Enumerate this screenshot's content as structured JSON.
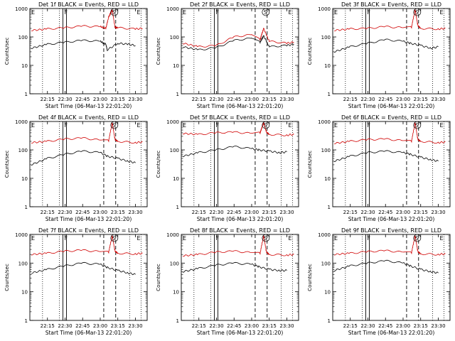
{
  "figure": {
    "start_time_label": "Start Time (06-Mar-13 22:01:20)"
  },
  "chart_data": [
    {
      "type": "line",
      "title": "Det 1f BLACK = Events, RED = LLD",
      "ylabel": "Counts/sec",
      "xlabel": "Start Time (06-Mar-13 22:01:20)",
      "yscale": "log",
      "ylim": [
        1,
        1000
      ],
      "y_ticks": [
        "1",
        "10",
        "100",
        "1000"
      ],
      "x_ticks": [
        "22:15",
        "22:30",
        "22:45",
        "23:00",
        "23:15",
        "23:30"
      ],
      "markers": [
        "E",
        "F",
        "S",
        "E"
      ],
      "series": [
        {
          "color": "#d00000",
          "x": [
            22.02,
            22.25,
            22.5,
            22.75,
            23.0,
            23.08,
            23.12,
            23.17,
            23.21,
            23.25,
            23.5,
            23.6
          ],
          "values": [
            170,
            190,
            210,
            240,
            230,
            200,
            500,
            900,
            220,
            210,
            190,
            200
          ]
        },
        {
          "color": "#000000",
          "x": [
            22.02,
            22.25,
            22.5,
            22.75,
            23.0,
            23.08,
            23.1,
            23.25,
            23.4,
            23.5
          ],
          "values": [
            40,
            55,
            65,
            75,
            70,
            55,
            35,
            60,
            55,
            50
          ]
        }
      ]
    },
    {
      "type": "line",
      "title": "Det 2f BLACK = Events, RED = LLD",
      "ylabel": "Counts/sec",
      "xlabel": "Start Time (06-Mar-13 22:01:20)",
      "yscale": "log",
      "ylim": [
        1,
        1000
      ],
      "y_ticks": [
        "1",
        "10",
        "100",
        "1000"
      ],
      "x_ticks": [
        "22:15",
        "22:30",
        "22:45",
        "23:00",
        "23:15",
        "23:30"
      ],
      "markers": [
        "E",
        "F",
        "S",
        "E"
      ],
      "series": [
        {
          "color": "#d00000",
          "x": [
            22.02,
            22.25,
            22.5,
            22.75,
            23.0,
            23.12,
            23.17,
            23.25,
            23.5,
            23.6
          ],
          "values": [
            60,
            45,
            50,
            100,
            120,
            80,
            200,
            70,
            60,
            65
          ]
        },
        {
          "color": "#000000",
          "x": [
            22.02,
            22.25,
            22.5,
            22.75,
            23.0,
            23.12,
            23.17,
            23.25,
            23.5,
            23.6
          ],
          "values": [
            45,
            35,
            42,
            75,
            90,
            65,
            110,
            45,
            50,
            55
          ]
        }
      ]
    },
    {
      "type": "line",
      "title": "Det 3f BLACK = Events, RED = LLD",
      "ylabel": "Counts/sec",
      "xlabel": "Start Time (06-Mar-13 22:01:20)",
      "yscale": "log",
      "ylim": [
        1,
        1000
      ],
      "y_ticks": [
        "1",
        "10",
        "100",
        "1000"
      ],
      "x_ticks": [
        "22:15",
        "22:30",
        "22:45",
        "23:00",
        "23:15",
        "23:30"
      ],
      "markers": [
        "E",
        "F",
        "S",
        "E"
      ],
      "series": [
        {
          "color": "#d00000",
          "x": [
            22.02,
            22.25,
            22.5,
            22.75,
            23.0,
            23.12,
            23.17,
            23.21,
            23.25,
            23.5,
            23.6
          ],
          "values": [
            170,
            190,
            200,
            230,
            210,
            220,
            900,
            250,
            200,
            190,
            200
          ]
        },
        {
          "color": "#000000",
          "x": [
            22.02,
            22.25,
            22.5,
            22.75,
            23.0,
            23.1,
            23.25,
            23.4,
            23.5
          ],
          "values": [
            30,
            45,
            60,
            80,
            70,
            60,
            50,
            40,
            45
          ]
        }
      ]
    },
    {
      "type": "line",
      "title": "Det 4f BLACK = Events, RED = LLD",
      "ylabel": "Counts/sec",
      "xlabel": "Start Time (06-Mar-13 22:01:20)",
      "yscale": "log",
      "ylim": [
        1,
        1000
      ],
      "y_ticks": [
        "1",
        "10",
        "100",
        "1000"
      ],
      "x_ticks": [
        "22:15",
        "22:30",
        "22:45",
        "23:00",
        "23:15",
        "23:30"
      ],
      "markers": [
        "E",
        "F",
        "S",
        "E"
      ],
      "series": [
        {
          "color": "#d00000",
          "x": [
            22.02,
            22.25,
            22.5,
            22.75,
            23.0,
            23.12,
            23.17,
            23.21,
            23.25,
            23.5,
            23.6
          ],
          "values": [
            180,
            200,
            240,
            260,
            220,
            210,
            900,
            230,
            200,
            180,
            190
          ]
        },
        {
          "color": "#000000",
          "x": [
            22.02,
            22.25,
            22.5,
            22.75,
            23.0,
            23.1,
            23.25,
            23.4,
            23.5
          ],
          "values": [
            30,
            50,
            70,
            90,
            80,
            60,
            50,
            40,
            35
          ]
        }
      ]
    },
    {
      "type": "line",
      "title": "Det 5f BLACK = Events, RED = LLD",
      "ylabel": "Counts/sec",
      "xlabel": "Start Time (06-Mar-13 22:01:20)",
      "yscale": "log",
      "ylim": [
        1,
        1000
      ],
      "y_ticks": [
        "1",
        "10",
        "100",
        "1000"
      ],
      "x_ticks": [
        "22:15",
        "22:30",
        "22:45",
        "23:00",
        "23:15",
        "23:30"
      ],
      "markers": [
        "E",
        "F",
        "S",
        "E"
      ],
      "series": [
        {
          "color": "#d00000",
          "x": [
            22.02,
            22.25,
            22.5,
            22.75,
            23.0,
            23.12,
            23.17,
            23.21,
            23.25,
            23.5,
            23.6
          ],
          "values": [
            380,
            350,
            400,
            420,
            380,
            400,
            900,
            420,
            350,
            330,
            350
          ]
        },
        {
          "color": "#000000",
          "x": [
            22.02,
            22.25,
            22.5,
            22.75,
            23.0,
            23.1,
            23.25,
            23.4,
            23.5
          ],
          "values": [
            60,
            80,
            100,
            130,
            110,
            100,
            90,
            80,
            85
          ]
        }
      ]
    },
    {
      "type": "line",
      "title": "Det 6f BLACK = Events, RED = LLD",
      "ylabel": "Counts/sec",
      "xlabel": "Start Time (06-Mar-13 22:01:20)",
      "yscale": "log",
      "ylim": [
        1,
        1000
      ],
      "y_ticks": [
        "1",
        "10",
        "100",
        "1000"
      ],
      "x_ticks": [
        "22:15",
        "22:30",
        "22:45",
        "23:00",
        "23:15",
        "23:30"
      ],
      "markers": [
        "E",
        "F",
        "S",
        "E"
      ],
      "series": [
        {
          "color": "#d00000",
          "x": [
            22.02,
            22.25,
            22.5,
            22.75,
            23.0,
            23.12,
            23.17,
            23.21,
            23.25,
            23.5,
            23.6
          ],
          "values": [
            170,
            200,
            230,
            240,
            210,
            200,
            900,
            230,
            200,
            180,
            190
          ]
        },
        {
          "color": "#000000",
          "x": [
            22.02,
            22.25,
            22.5,
            22.75,
            23.0,
            23.1,
            23.25,
            23.4,
            23.5
          ],
          "values": [
            40,
            60,
            80,
            90,
            80,
            70,
            55,
            45,
            40
          ]
        }
      ]
    },
    {
      "type": "line",
      "title": "Det 7f BLACK = Events, RED = LLD",
      "ylabel": "Counts/sec",
      "xlabel": "Start Time (06-Mar-13 22:01:20)",
      "yscale": "log",
      "ylim": [
        1,
        1000
      ],
      "y_ticks": [
        "1",
        "10",
        "100",
        "1000"
      ],
      "x_ticks": [
        "22:15",
        "22:30",
        "22:45",
        "23:00",
        "23:15",
        "23:30"
      ],
      "markers": [
        "E",
        "F",
        "S",
        "E"
      ],
      "series": [
        {
          "color": "#d00000",
          "x": [
            22.02,
            22.25,
            22.5,
            22.75,
            23.0,
            23.12,
            23.17,
            23.21,
            23.25,
            23.5,
            23.6
          ],
          "values": [
            200,
            220,
            260,
            280,
            250,
            240,
            900,
            260,
            220,
            210,
            220
          ]
        },
        {
          "color": "#000000",
          "x": [
            22.02,
            22.25,
            22.5,
            22.75,
            23.0,
            23.1,
            23.25,
            23.4,
            23.5
          ],
          "values": [
            45,
            60,
            80,
            100,
            90,
            70,
            55,
            45,
            40
          ]
        }
      ]
    },
    {
      "type": "line",
      "title": "Det 8f BLACK = Events, RED = LLD",
      "ylabel": "Counts/sec",
      "xlabel": "Start Time (06-Mar-13 22:01:20)",
      "yscale": "log",
      "ylim": [
        1,
        1000
      ],
      "y_ticks": [
        "1",
        "10",
        "100",
        "1000"
      ],
      "x_ticks": [
        "22:15",
        "22:30",
        "22:45",
        "23:00",
        "23:15",
        "23:30"
      ],
      "markers": [
        "E",
        "F",
        "S",
        "E"
      ],
      "series": [
        {
          "color": "#d00000",
          "x": [
            22.02,
            22.25,
            22.5,
            22.75,
            23.0,
            23.12,
            23.17,
            23.21,
            23.25,
            23.5,
            23.6
          ],
          "values": [
            180,
            200,
            240,
            260,
            230,
            220,
            900,
            240,
            200,
            190,
            200
          ]
        },
        {
          "color": "#000000",
          "x": [
            22.02,
            22.25,
            22.5,
            22.75,
            23.0,
            23.1,
            23.25,
            23.4,
            23.5
          ],
          "values": [
            50,
            65,
            85,
            100,
            90,
            75,
            60,
            55,
            55
          ]
        }
      ]
    },
    {
      "type": "line",
      "title": "Det 9f BLACK = Events, RED = LLD",
      "ylabel": "Counts/sec",
      "xlabel": "Start Time (06-Mar-13 22:01:20)",
      "yscale": "log",
      "ylim": [
        1,
        1000
      ],
      "y_ticks": [
        "1",
        "10",
        "100",
        "1000"
      ],
      "x_ticks": [
        "22:15",
        "22:30",
        "22:45",
        "23:00",
        "23:15",
        "23:30"
      ],
      "markers": [
        "E",
        "F",
        "S",
        "E"
      ],
      "series": [
        {
          "color": "#d00000",
          "x": [
            22.02,
            22.25,
            22.5,
            22.75,
            23.0,
            23.12,
            23.17,
            23.21,
            23.25,
            23.5,
            23.6
          ],
          "values": [
            200,
            220,
            250,
            270,
            240,
            230,
            900,
            250,
            210,
            200,
            210
          ]
        },
        {
          "color": "#000000",
          "x": [
            22.02,
            22.25,
            22.5,
            22.75,
            23.0,
            23.1,
            23.25,
            23.4,
            23.5
          ],
          "values": [
            55,
            80,
            100,
            120,
            100,
            80,
            60,
            50,
            45
          ]
        }
      ]
    }
  ]
}
